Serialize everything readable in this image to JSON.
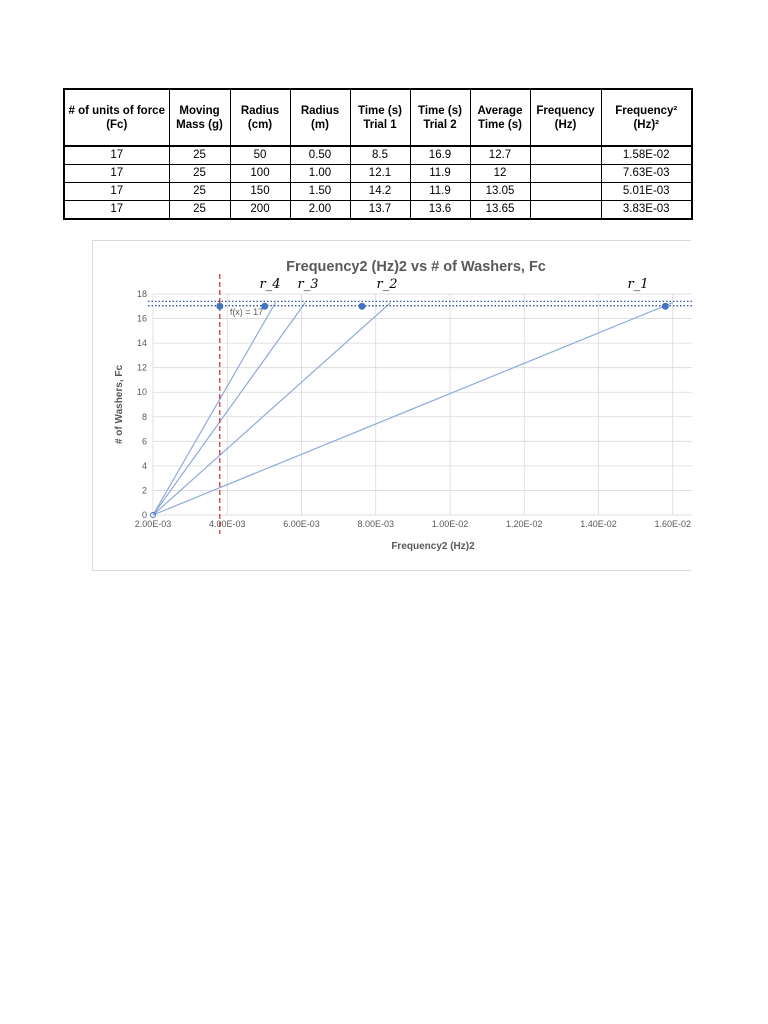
{
  "table": {
    "headers": [
      [
        "# of units of force",
        "(Fᴄ)"
      ],
      [
        "Moving",
        "Mass (g)"
      ],
      [
        "Radius",
        "(cm)"
      ],
      [
        "Radius",
        "(m)"
      ],
      [
        "Time (s)",
        "Trial 1"
      ],
      [
        "Time (s)",
        "Trial 2"
      ],
      [
        "Average",
        "Time (s)"
      ],
      [
        "Frequency",
        "(Hz)"
      ],
      [
        "Frequency²",
        "(Hz)²"
      ]
    ],
    "rows": [
      [
        "17",
        "25",
        "50",
        "0.50",
        "8.5",
        "16.9",
        "12.7",
        "",
        "1.58E-02"
      ],
      [
        "17",
        "25",
        "100",
        "1.00",
        "12.1",
        "11.9",
        "12",
        "",
        "7.63E-03"
      ],
      [
        "17",
        "25",
        "150",
        "1.50",
        "14.2",
        "11.9",
        "13.05",
        "",
        "5.01E-03"
      ],
      [
        "17",
        "25",
        "200",
        "2.00",
        "13.7",
        "13.6",
        "13.65",
        "",
        "3.83E-03"
      ]
    ]
  },
  "chart_data": {
    "type": "scatter",
    "title": "Frequency2 (Hz)2 vs # of Washers, Fc",
    "xlabel": "Frequency2 (Hz)2",
    "ylabel": "# of Washers, Fc",
    "xlim": [
      0.002,
      0.018
    ],
    "ylim": [
      0,
      18
    ],
    "x_ticks": [
      "2.00E-03",
      "4.00E-03",
      "6.00E-03",
      "8.00E-03",
      "1.00E-02",
      "1.20E-02",
      "1.40E-02",
      "1.60E-02"
    ],
    "y_ticks": [
      "0",
      "2",
      "4",
      "6",
      "8",
      "10",
      "12",
      "14",
      "16",
      "18"
    ],
    "grid": true,
    "points": [
      {
        "x": 0.0158,
        "y": 17
      },
      {
        "x": 0.00763,
        "y": 17
      },
      {
        "x": 0.00501,
        "y": 17
      },
      {
        "x": 0.0038,
        "y": 17
      }
    ],
    "origin_point": {
      "x": 0.002,
      "y": 0
    },
    "radius_lines": [
      {
        "label": "r_1",
        "x_end": 0.016,
        "y_end": 17.3
      },
      {
        "label": "r_2",
        "x_end": 0.0084,
        "y_end": 17.3
      },
      {
        "label": "r_3",
        "x_end": 0.0061,
        "y_end": 17.3
      },
      {
        "label": "r_4",
        "x_end": 0.0053,
        "y_end": 17.3
      }
    ],
    "hlines": [
      {
        "y": 17.4,
        "style": "dotted",
        "color": "#2f55a4"
      },
      {
        "y": 17.05,
        "style": "dotted",
        "color": "#2f55a4"
      }
    ],
    "vline": {
      "x": 0.0038,
      "style": "dashed",
      "color": "#c00000"
    },
    "annotation": "f(x) = 17",
    "colors": {
      "series": "#4472c4",
      "line": "#8faadc",
      "grid": "#d9d9d9"
    }
  }
}
